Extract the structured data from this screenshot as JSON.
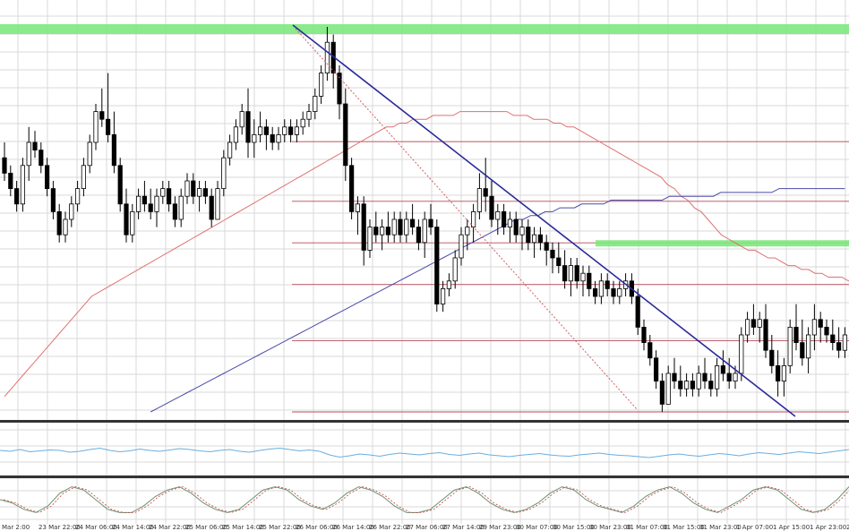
{
  "chart_data": {
    "type": "candlestick",
    "title": "",
    "xlabel": "",
    "ylabel": "",
    "x_tick_labels": [
      "Mar 2:00",
      "23 Mar 22:00",
      "24 Mar 06:00",
      "24 Mar 14:00",
      "24 Mar 22:00",
      "25 Mar 06:00",
      "25 Mar 14:00",
      "25 Mar 22:00",
      "26 Mar 06:00",
      "26 Mar 14:00",
      "26 Mar 22:00",
      "27 Mar 06:00",
      "27 Mar 14:00",
      "29 Mar 23:00",
      "30 Mar 07:00",
      "30 Mar 15:00",
      "30 Mar 23:00",
      "31 Mar 07:00",
      "31 Mar 15:00",
      "31 Mar 23:00",
      "1 Apr 07:00",
      "1 Apr 15:00",
      "1 Apr 23:00",
      "2"
    ],
    "price_scale": {
      "top": 100,
      "bottom": 0
    },
    "candles": [
      [
        66,
        70,
        60,
        62
      ],
      [
        62,
        64,
        56,
        58
      ],
      [
        58,
        60,
        52,
        54
      ],
      [
        54,
        66,
        52,
        64
      ],
      [
        64,
        74,
        60,
        70
      ],
      [
        70,
        73,
        66,
        68
      ],
      [
        68,
        70,
        62,
        64
      ],
      [
        64,
        66,
        56,
        58
      ],
      [
        58,
        60,
        50,
        52
      ],
      [
        52,
        54,
        44,
        46
      ],
      [
        46,
        52,
        44,
        50
      ],
      [
        50,
        56,
        48,
        54
      ],
      [
        54,
        60,
        52,
        58
      ],
      [
        58,
        66,
        56,
        64
      ],
      [
        64,
        72,
        62,
        70
      ],
      [
        70,
        80,
        68,
        78
      ],
      [
        78,
        84,
        74,
        76
      ],
      [
        76,
        88,
        70,
        72
      ],
      [
        72,
        78,
        62,
        64
      ],
      [
        64,
        66,
        52,
        54
      ],
      [
        54,
        58,
        44,
        46
      ],
      [
        46,
        54,
        44,
        52
      ],
      [
        52,
        58,
        50,
        56
      ],
      [
        56,
        60,
        52,
        54
      ],
      [
        54,
        58,
        50,
        52
      ],
      [
        52,
        58,
        48,
        56
      ],
      [
        56,
        60,
        54,
        58
      ],
      [
        58,
        60,
        52,
        54
      ],
      [
        54,
        56,
        48,
        50
      ],
      [
        50,
        58,
        48,
        56
      ],
      [
        56,
        62,
        54,
        60
      ],
      [
        60,
        62,
        54,
        56
      ],
      [
        56,
        60,
        52,
        58
      ],
      [
        58,
        60,
        54,
        56
      ],
      [
        56,
        58,
        48,
        50
      ],
      [
        50,
        60,
        50,
        58
      ],
      [
        58,
        68,
        56,
        66
      ],
      [
        66,
        72,
        64,
        70
      ],
      [
        70,
        76,
        68,
        74
      ],
      [
        74,
        80,
        72,
        78
      ],
      [
        78,
        84,
        66,
        70
      ],
      [
        70,
        76,
        66,
        72
      ],
      [
        72,
        78,
        70,
        74
      ],
      [
        74,
        76,
        68,
        72
      ],
      [
        72,
        74,
        68,
        70
      ],
      [
        70,
        74,
        68,
        72
      ],
      [
        72,
        76,
        70,
        74
      ],
      [
        74,
        76,
        70,
        72
      ],
      [
        72,
        76,
        70,
        74
      ],
      [
        74,
        78,
        72,
        76
      ],
      [
        76,
        80,
        74,
        78
      ],
      [
        78,
        84,
        76,
        82
      ],
      [
        82,
        90,
        80,
        88
      ],
      [
        88,
        100,
        86,
        96
      ],
      [
        96,
        98,
        84,
        88
      ],
      [
        88,
        90,
        76,
        80
      ],
      [
        80,
        84,
        60,
        64
      ],
      [
        64,
        66,
        50,
        52
      ],
      [
        52,
        56,
        46,
        54
      ],
      [
        54,
        56,
        38,
        42
      ],
      [
        42,
        50,
        40,
        48
      ],
      [
        48,
        52,
        44,
        46
      ],
      [
        46,
        50,
        42,
        48
      ],
      [
        48,
        52,
        44,
        46
      ],
      [
        46,
        52,
        44,
        50
      ],
      [
        50,
        52,
        44,
        46
      ],
      [
        46,
        52,
        44,
        50
      ],
      [
        50,
        54,
        46,
        48
      ],
      [
        48,
        50,
        42,
        44
      ],
      [
        44,
        52,
        40,
        50
      ],
      [
        50,
        54,
        46,
        48
      ],
      [
        48,
        50,
        26,
        28
      ],
      [
        28,
        34,
        26,
        32
      ],
      [
        32,
        36,
        30,
        34
      ],
      [
        34,
        42,
        32,
        40
      ],
      [
        40,
        48,
        38,
        46
      ],
      [
        46,
        50,
        42,
        48
      ],
      [
        48,
        54,
        44,
        52
      ],
      [
        52,
        62,
        50,
        58
      ],
      [
        58,
        66,
        52,
        56
      ],
      [
        56,
        60,
        48,
        50
      ],
      [
        50,
        54,
        46,
        52
      ],
      [
        52,
        54,
        46,
        48
      ],
      [
        48,
        52,
        44,
        50
      ],
      [
        50,
        52,
        44,
        46
      ],
      [
        46,
        50,
        42,
        48
      ],
      [
        48,
        50,
        42,
        44
      ],
      [
        44,
        48,
        40,
        46
      ],
      [
        46,
        48,
        42,
        44
      ],
      [
        44,
        46,
        38,
        42
      ],
      [
        42,
        44,
        36,
        40
      ],
      [
        40,
        44,
        36,
        38
      ],
      [
        38,
        42,
        32,
        34
      ],
      [
        34,
        40,
        30,
        38
      ],
      [
        38,
        40,
        32,
        34
      ],
      [
        34,
        38,
        30,
        36
      ],
      [
        36,
        38,
        30,
        32
      ],
      [
        32,
        34,
        28,
        30
      ],
      [
        30,
        36,
        28,
        34
      ],
      [
        34,
        36,
        30,
        32
      ],
      [
        32,
        34,
        28,
        30
      ],
      [
        30,
        34,
        28,
        32
      ],
      [
        32,
        36,
        30,
        34
      ],
      [
        34,
        36,
        28,
        30
      ],
      [
        30,
        32,
        20,
        22
      ],
      [
        22,
        24,
        16,
        18
      ],
      [
        18,
        20,
        12,
        14
      ],
      [
        14,
        16,
        6,
        8
      ],
      [
        8,
        10,
        0,
        2
      ],
      [
        2,
        12,
        2,
        10
      ],
      [
        10,
        14,
        6,
        8
      ],
      [
        8,
        12,
        4,
        6
      ],
      [
        6,
        10,
        4,
        8
      ],
      [
        8,
        10,
        4,
        6
      ],
      [
        6,
        12,
        4,
        10
      ],
      [
        10,
        14,
        6,
        8
      ],
      [
        8,
        10,
        4,
        6
      ],
      [
        6,
        14,
        4,
        12
      ],
      [
        12,
        16,
        8,
        10
      ],
      [
        10,
        14,
        6,
        8
      ],
      [
        8,
        12,
        6,
        10
      ],
      [
        10,
        22,
        8,
        20
      ],
      [
        20,
        26,
        18,
        24
      ],
      [
        24,
        28,
        20,
        22
      ],
      [
        22,
        26,
        18,
        24
      ],
      [
        24,
        28,
        14,
        16
      ],
      [
        16,
        20,
        10,
        12
      ],
      [
        12,
        16,
        4,
        8
      ],
      [
        8,
        14,
        4,
        12
      ],
      [
        12,
        24,
        10,
        22
      ],
      [
        22,
        28,
        16,
        18
      ],
      [
        18,
        24,
        12,
        14
      ],
      [
        14,
        22,
        10,
        20
      ],
      [
        20,
        28,
        16,
        24
      ],
      [
        24,
        26,
        18,
        22
      ],
      [
        22,
        24,
        18,
        20
      ],
      [
        20,
        24,
        16,
        18
      ],
      [
        18,
        22,
        14,
        16
      ],
      [
        16,
        22,
        14,
        20
      ],
      [
        20,
        26,
        18,
        24
      ],
      [
        24,
        36,
        22,
        34
      ]
    ],
    "ma_red": [
      4,
      6,
      8,
      10,
      12,
      14,
      16,
      18,
      20,
      22,
      24,
      26,
      28,
      30,
      31,
      32,
      33,
      34,
      35,
      36,
      37,
      38,
      39,
      40,
      41,
      42,
      43,
      44,
      45,
      46,
      47,
      48,
      49,
      50,
      51,
      52,
      53,
      54,
      55,
      56,
      57,
      58,
      59,
      60,
      61,
      62,
      63,
      64,
      65,
      66,
      67,
      68,
      69,
      70,
      71,
      72,
      73,
      74,
      74,
      75,
      75,
      76,
      76,
      76,
      77,
      77,
      77,
      77,
      78,
      78,
      78,
      78,
      78,
      78,
      78,
      78,
      77,
      77,
      77,
      76,
      76,
      76,
      75,
      75,
      74,
      74,
      73,
      72,
      71,
      70,
      69,
      68,
      67,
      66,
      65,
      64,
      63,
      62,
      61,
      59,
      58,
      56,
      55,
      53,
      52,
      50,
      48,
      46,
      45,
      44,
      43,
      42,
      42,
      41,
      40,
      40,
      39,
      38,
      38,
      37,
      37,
      36,
      36,
      35,
      35,
      35,
      34,
      34,
      33
    ],
    "ma_blue": [
      0,
      1,
      2,
      3,
      4,
      5,
      6,
      7,
      8,
      9,
      10,
      11,
      12,
      13,
      14,
      15,
      16,
      17,
      18,
      19,
      20,
      21,
      22,
      23,
      24,
      25,
      26,
      27,
      28,
      29,
      30,
      31,
      32,
      33,
      34,
      35,
      36,
      37,
      38,
      39,
      40,
      41,
      42,
      43,
      44,
      45,
      46,
      47,
      48,
      49,
      50,
      50,
      51,
      51,
      52,
      52,
      53,
      53,
      53,
      54,
      54,
      54,
      54,
      55,
      55,
      55,
      55,
      55,
      55,
      55,
      55,
      56,
      56,
      56,
      56,
      56,
      56,
      56,
      57,
      57,
      57,
      57,
      57,
      57,
      57,
      57,
      58,
      58,
      58,
      58,
      58,
      58,
      58,
      58,
      58,
      58
    ],
    "horizontal_levels": [
      0,
      18.5,
      33.1,
      43.9,
      54.7,
      70.2
    ],
    "support_resistance_zones": [
      100,
      43.9
    ],
    "trendline": {
      "from": [
        52,
        100
      ],
      "to": [
        135,
        -2
      ]
    },
    "fib_line": {
      "from": [
        52,
        100
      ],
      "to": [
        106,
        2
      ]
    },
    "sub_panel_1": {
      "type": "line",
      "series": [
        0.5,
        0.48,
        0.52,
        0.47,
        0.49,
        0.51,
        0.5,
        0.46,
        0.48,
        0.52,
        0.55,
        0.5,
        0.47,
        0.49,
        0.53,
        0.5,
        0.48,
        0.51,
        0.54,
        0.52,
        0.49,
        0.47,
        0.5,
        0.52,
        0.48,
        0.46,
        0.5,
        0.53,
        0.55,
        0.52,
        0.49,
        0.51,
        0.48,
        0.4,
        0.35,
        0.38,
        0.42,
        0.4,
        0.37,
        0.41,
        0.44,
        0.42,
        0.4,
        0.43,
        0.45,
        0.41,
        0.39,
        0.42,
        0.44,
        0.4,
        0.38,
        0.36,
        0.39,
        0.41,
        0.43,
        0.4,
        0.38,
        0.37,
        0.4,
        0.42,
        0.44,
        0.41,
        0.39,
        0.38,
        0.36,
        0.34,
        0.37,
        0.4,
        0.42,
        0.39,
        0.37,
        0.4,
        0.43,
        0.41,
        0.38,
        0.42,
        0.45,
        0.43,
        0.41,
        0.44,
        0.47,
        0.45,
        0.43,
        0.46,
        0.49,
        0.52
      ]
    },
    "sub_panel_2": {
      "type": "line",
      "series": [
        0.5,
        0.4,
        0.2,
        0.1,
        0.3,
        0.7,
        0.9,
        0.8,
        0.5,
        0.2,
        0.1,
        0.1,
        0.3,
        0.6,
        0.8,
        0.9,
        0.7,
        0.4,
        0.2,
        0.1,
        0.2,
        0.5,
        0.8,
        0.9,
        0.8,
        0.5,
        0.3,
        0.2,
        0.4,
        0.7,
        0.9,
        0.8,
        0.6,
        0.3,
        0.1,
        0.1,
        0.2,
        0.5,
        0.8,
        0.9,
        0.7,
        0.4,
        0.2,
        0.1,
        0.2,
        0.4,
        0.7,
        0.9,
        0.8,
        0.5,
        0.3,
        0.2,
        0.1,
        0.3,
        0.6,
        0.8,
        0.9,
        0.7,
        0.4,
        0.2,
        0.1,
        0.3,
        0.5,
        0.8,
        0.9,
        0.8,
        0.5,
        0.2,
        0.1,
        0.2,
        0.5,
        0.9
      ]
    }
  }
}
